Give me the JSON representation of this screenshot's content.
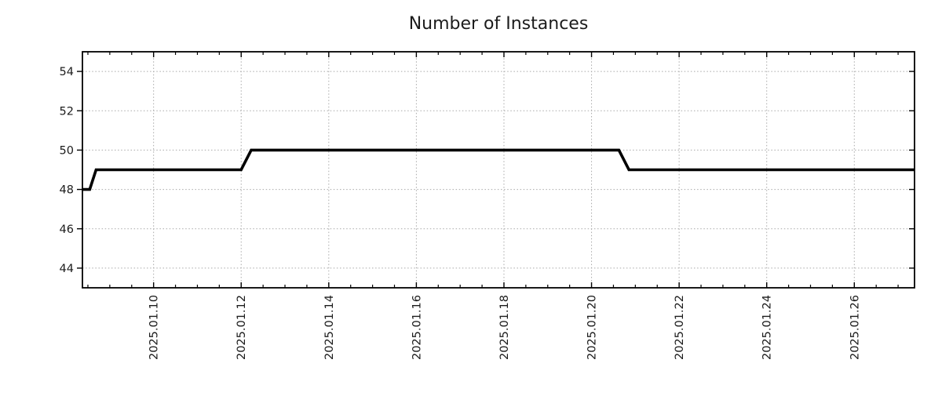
{
  "chart_data": {
    "type": "line",
    "title": "Number of Instances",
    "xlabel": "",
    "ylabel": "",
    "legend": "none",
    "series": [
      {
        "name": "Number of Instances",
        "color": "#000000",
        "line_width": 3.6,
        "points": [
          [
            "2025-01-08T09:00:00Z",
            48
          ],
          [
            "2025-01-08T13:00:00Z",
            48
          ],
          [
            "2025-01-08T16:30:00Z",
            49
          ],
          [
            "2025-01-12T00:00:00Z",
            49
          ],
          [
            "2025-01-12T05:30:00Z",
            50
          ],
          [
            "2025-01-20T15:00:00Z",
            50
          ],
          [
            "2025-01-20T20:30:00Z",
            49
          ],
          [
            "2025-01-27T09:00:00Z",
            49
          ]
        ]
      }
    ],
    "x_axis": {
      "scale": "time",
      "min": "2025-01-08T09:00:00Z",
      "max": "2025-01-27T09:00:00Z",
      "major_ticks": [
        {
          "t": "2025-01-10T00:00:00Z",
          "label": "2025.01.10"
        },
        {
          "t": "2025-01-12T00:00:00Z",
          "label": "2025.01.12"
        },
        {
          "t": "2025-01-14T00:00:00Z",
          "label": "2025.01.14"
        },
        {
          "t": "2025-01-16T00:00:00Z",
          "label": "2025.01.16"
        },
        {
          "t": "2025-01-18T00:00:00Z",
          "label": "2025.01.18"
        },
        {
          "t": "2025-01-20T00:00:00Z",
          "label": "2025.01.20"
        },
        {
          "t": "2025-01-22T00:00:00Z",
          "label": "2025.01.22"
        },
        {
          "t": "2025-01-24T00:00:00Z",
          "label": "2025.01.24"
        },
        {
          "t": "2025-01-26T00:00:00Z",
          "label": "2025.01.26"
        }
      ],
      "minor_tick_interval_hours": 12,
      "label_rotation_deg": 90
    },
    "y_axis": {
      "min": 43,
      "max": 55,
      "major_ticks": [
        {
          "v": 44,
          "label": "44"
        },
        {
          "v": 46,
          "label": "46"
        },
        {
          "v": 48,
          "label": "48"
        },
        {
          "v": 50,
          "label": "50"
        },
        {
          "v": 52,
          "label": "52"
        },
        {
          "v": 54,
          "label": "54"
        }
      ]
    },
    "grid": {
      "show": true,
      "style": "dotted",
      "color": "#a9a9a9"
    },
    "styles": {
      "background": "#ffffff",
      "axis_color": "#000000",
      "title_color": "#1c1c1c",
      "tick_label_color": "#1c1c1c"
    }
  }
}
